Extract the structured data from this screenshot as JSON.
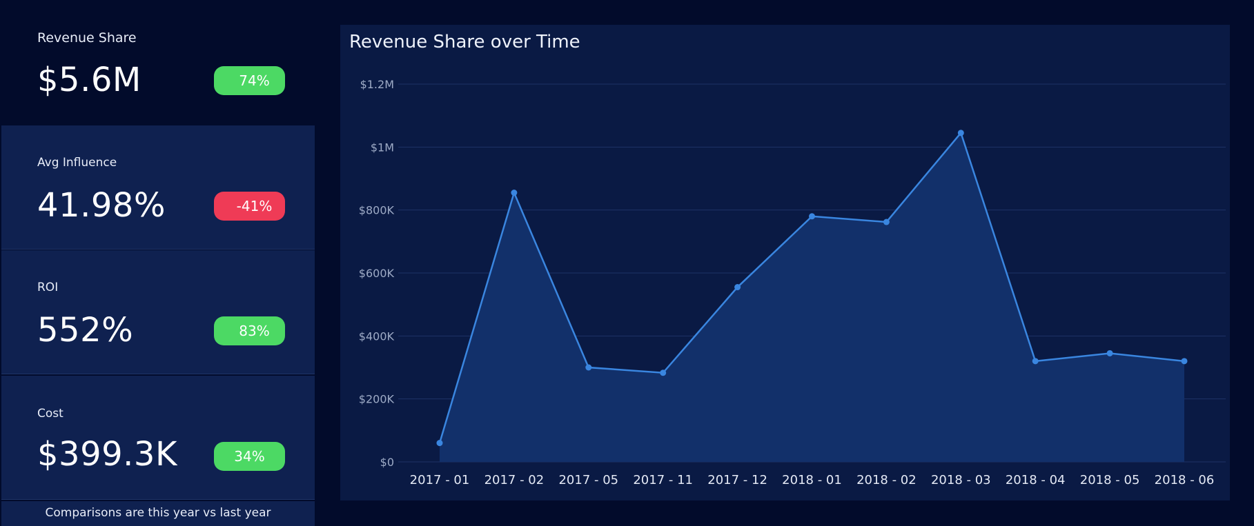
{
  "kpis": [
    {
      "label": "Revenue Share",
      "value": "$5.6M",
      "change": "74%",
      "status": "positive"
    },
    {
      "label": "Avg Influence",
      "value": "41.98%",
      "change": "-41%",
      "status": "negative"
    },
    {
      "label": "ROI",
      "value": "552%",
      "change": "83%",
      "status": "positive"
    },
    {
      "label": "Cost",
      "value": "$399.3K",
      "change": "34%",
      "status": "positive"
    }
  ],
  "footnote": "Comparisons are this year vs last year",
  "colors": {
    "positive": "#4cd964",
    "negative": "#ef3b56",
    "line": "#3a86e0",
    "area": "#12306a",
    "grid": "#1f3366"
  },
  "chart_data": {
    "type": "area",
    "title": "Revenue Share over Time",
    "xlabel": "",
    "ylabel": "",
    "categories": [
      "2017 - 01",
      "2017 - 02",
      "2017 - 05",
      "2017 - 11",
      "2017 - 12",
      "2018 - 01",
      "2018 - 02",
      "2018 - 03",
      "2018 - 04",
      "2018 - 05",
      "2018 - 06"
    ],
    "values": [
      60000,
      855000,
      300000,
      283000,
      555000,
      780000,
      762000,
      1045000,
      320000,
      345000,
      320000
    ],
    "ylim": [
      0,
      1200000
    ],
    "yticks": [
      {
        "value": 0,
        "label": "$0"
      },
      {
        "value": 200000,
        "label": "$200K"
      },
      {
        "value": 400000,
        "label": "$400K"
      },
      {
        "value": 600000,
        "label": "$600K"
      },
      {
        "value": 800000,
        "label": "$800K"
      },
      {
        "value": 1000000,
        "label": "$1M"
      },
      {
        "value": 1200000,
        "label": "$1.2M"
      }
    ],
    "grid": true,
    "legend": "none"
  }
}
